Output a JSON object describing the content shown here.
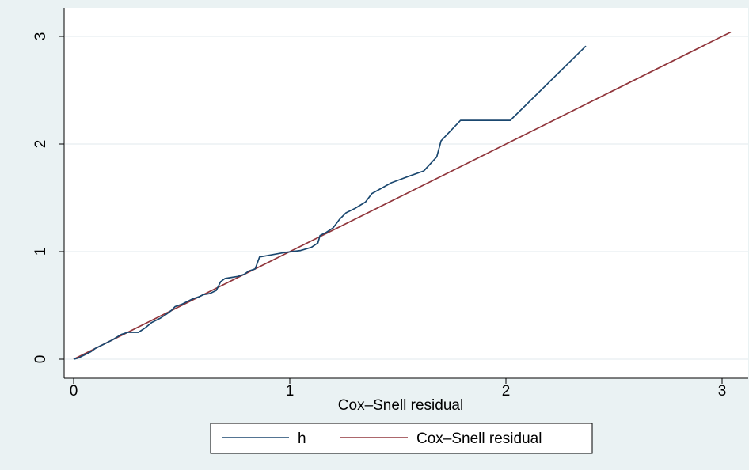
{
  "chart_data": {
    "type": "line",
    "title": "",
    "xlabel": "Cox–Snell residual",
    "ylabel": "",
    "xlim": [
      0,
      3.05
    ],
    "ylim": [
      0,
      3.05
    ],
    "x_ticks": [
      "0",
      "1",
      "2",
      "3"
    ],
    "y_ticks": [
      "0",
      "1",
      "2",
      "3"
    ],
    "grid": "horizontal",
    "legend_position": "bottom",
    "series": [
      {
        "name": "h",
        "color": "#1a476f",
        "points": [
          [
            0,
            0
          ],
          [
            0.02,
            0.01
          ],
          [
            0.05,
            0.04
          ],
          [
            0.08,
            0.07
          ],
          [
            0.1,
            0.1
          ],
          [
            0.14,
            0.14
          ],
          [
            0.18,
            0.18
          ],
          [
            0.22,
            0.23
          ],
          [
            0.25,
            0.25
          ],
          [
            0.3,
            0.25
          ],
          [
            0.33,
            0.29
          ],
          [
            0.36,
            0.34
          ],
          [
            0.4,
            0.38
          ],
          [
            0.43,
            0.42
          ],
          [
            0.45,
            0.45
          ],
          [
            0.47,
            0.49
          ],
          [
            0.5,
            0.51
          ],
          [
            0.52,
            0.53
          ],
          [
            0.55,
            0.56
          ],
          [
            0.58,
            0.58
          ],
          [
            0.6,
            0.6
          ],
          [
            0.63,
            0.61
          ],
          [
            0.66,
            0.64
          ],
          [
            0.68,
            0.72
          ],
          [
            0.7,
            0.75
          ],
          [
            0.73,
            0.76
          ],
          [
            0.76,
            0.77
          ],
          [
            0.79,
            0.79
          ],
          [
            0.81,
            0.82
          ],
          [
            0.84,
            0.84
          ],
          [
            0.86,
            0.95
          ],
          [
            0.97,
            0.99
          ],
          [
            1.05,
            1.01
          ],
          [
            1.1,
            1.04
          ],
          [
            1.13,
            1.08
          ],
          [
            1.14,
            1.15
          ],
          [
            1.17,
            1.18
          ],
          [
            1.2,
            1.22
          ],
          [
            1.23,
            1.3
          ],
          [
            1.26,
            1.36
          ],
          [
            1.3,
            1.4
          ],
          [
            1.35,
            1.46
          ],
          [
            1.38,
            1.54
          ],
          [
            1.47,
            1.64
          ],
          [
            1.55,
            1.7
          ],
          [
            1.62,
            1.75
          ],
          [
            1.68,
            1.88
          ],
          [
            1.7,
            2.03
          ],
          [
            1.79,
            2.22
          ],
          [
            1.9,
            2.22
          ],
          [
            2.02,
            2.22
          ],
          [
            2.37,
            2.91
          ]
        ]
      },
      {
        "name": "Cox–Snell residual",
        "color": "#90353b",
        "points": [
          [
            0,
            0
          ],
          [
            3.04,
            3.04
          ]
        ]
      }
    ]
  }
}
